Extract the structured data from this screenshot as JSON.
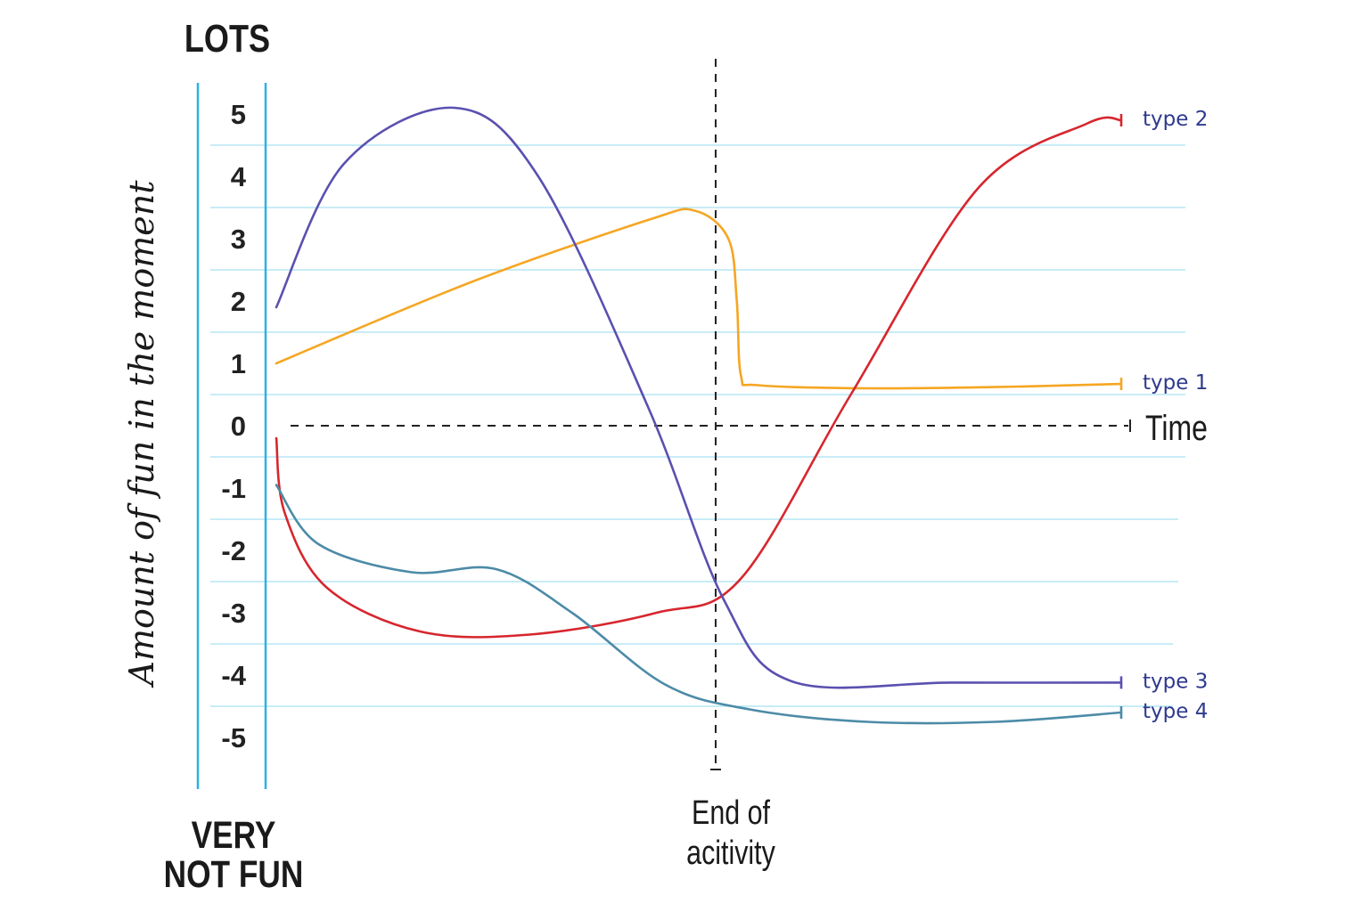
{
  "chart_data": {
    "type": "line",
    "top_label": "LOTS",
    "bottom_label_lines": [
      "VERY",
      "NOT FUN"
    ],
    "ylabel": "Amount of fun in the moment",
    "xlabel": "Time",
    "yticks": [
      5,
      4,
      3,
      2,
      1,
      0,
      -1,
      -2,
      -3,
      -4,
      -5
    ],
    "ylim": [
      -5.7,
      5.6
    ],
    "xlim": [
      0,
      10
    ],
    "grid": true,
    "annotation": {
      "x": 5.2,
      "label_lines": [
        "End of",
        "acitivity"
      ]
    },
    "series": [
      {
        "name": "type 1",
        "color": "#F5A623",
        "points": [
          [
            0,
            1.0
          ],
          [
            2.3,
            2.3
          ],
          [
            4.4,
            3.3
          ],
          [
            4.95,
            3.45
          ],
          [
            5.35,
            3.0
          ],
          [
            5.45,
            2.0
          ],
          [
            5.5,
            0.8
          ],
          [
            5.7,
            0.65
          ],
          [
            7.0,
            0.6
          ],
          [
            8.5,
            0.62
          ],
          [
            10,
            0.67
          ]
        ]
      },
      {
        "name": "type 2",
        "color": "#D7262E",
        "points": [
          [
            0,
            -0.2
          ],
          [
            0.1,
            -1.4
          ],
          [
            0.6,
            -2.6
          ],
          [
            1.7,
            -3.3
          ],
          [
            3.0,
            -3.35
          ],
          [
            4.5,
            -3.0
          ],
          [
            5.5,
            -2.45
          ],
          [
            6.8,
            0.5
          ],
          [
            8.3,
            3.8
          ],
          [
            9.6,
            4.85
          ],
          [
            10,
            4.9
          ]
        ]
      },
      {
        "name": "type 3",
        "color": "#5A50B0",
        "points": [
          [
            0,
            1.9
          ],
          [
            0.8,
            4.2
          ],
          [
            2.1,
            5.1
          ],
          [
            3.1,
            4.0
          ],
          [
            4.4,
            0.3
          ],
          [
            5.3,
            -2.8
          ],
          [
            6.1,
            -4.1
          ],
          [
            8.0,
            -4.12
          ],
          [
            10,
            -4.12
          ]
        ]
      },
      {
        "name": "type 4",
        "color": "#4C8BA7",
        "points": [
          [
            0,
            -0.95
          ],
          [
            0.5,
            -1.9
          ],
          [
            1.6,
            -2.35
          ],
          [
            2.6,
            -2.3
          ],
          [
            3.5,
            -3.0
          ],
          [
            4.6,
            -4.15
          ],
          [
            5.6,
            -4.55
          ],
          [
            7.0,
            -4.75
          ],
          [
            8.5,
            -4.75
          ],
          [
            10,
            -4.6
          ]
        ]
      }
    ]
  }
}
